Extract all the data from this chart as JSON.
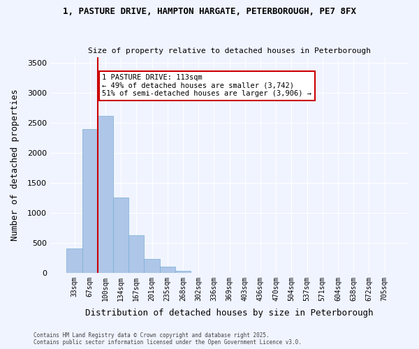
{
  "title_line1": "1, PASTURE DRIVE, HAMPTON HARGATE, PETERBOROUGH, PE7 8FX",
  "title_line2": "Size of property relative to detached houses in Peterborough",
  "xlabel": "Distribution of detached houses by size in Peterborough",
  "ylabel": "Number of detached properties",
  "bar_labels": [
    "33sqm",
    "67sqm",
    "100sqm",
    "134sqm",
    "167sqm",
    "201sqm",
    "235sqm",
    "268sqm",
    "302sqm",
    "336sqm",
    "369sqm",
    "403sqm",
    "436sqm",
    "470sqm",
    "504sqm",
    "537sqm",
    "571sqm",
    "604sqm",
    "638sqm",
    "672sqm",
    "705sqm"
  ],
  "bar_heights": [
    400,
    2400,
    2620,
    1250,
    625,
    230,
    100,
    30,
    0,
    0,
    0,
    0,
    0,
    0,
    0,
    0,
    0,
    0,
    0,
    0,
    0
  ],
  "bar_color": "#aec6e8",
  "bar_edge_color": "#7aafd4",
  "highlight_bar_index": 2,
  "highlight_color": "#aec6e8",
  "vline_x_index": 2,
  "vline_color": "#cc0000",
  "annotation_text": "1 PASTURE DRIVE: 113sqm\n← 49% of detached houses are smaller (3,742)\n51% of semi-detached houses are larger (3,906) →",
  "annotation_box_color": "#ffffff",
  "annotation_edge_color": "#cc0000",
  "ylim": [
    0,
    3600
  ],
  "yticks": [
    0,
    500,
    1000,
    1500,
    2000,
    2500,
    3000,
    3500
  ],
  "background_color": "#f0f4ff",
  "grid_color": "#ffffff",
  "footer_line1": "Contains HM Land Registry data © Crown copyright and database right 2025.",
  "footer_line2": "Contains public sector information licensed under the Open Government Licence v3.0."
}
